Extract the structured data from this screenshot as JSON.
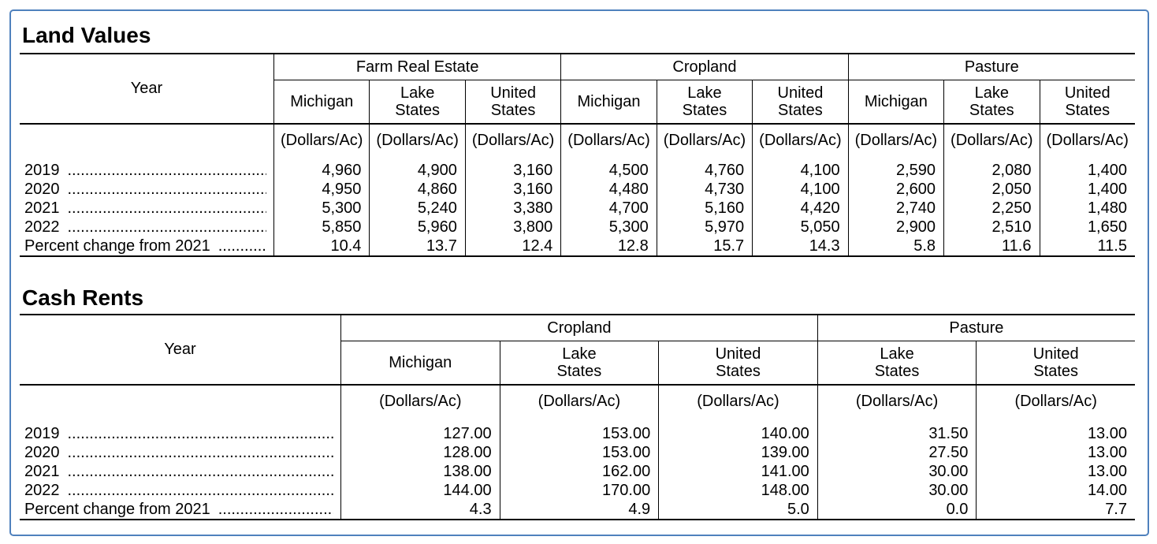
{
  "page": {
    "border_color": "#4f81bd"
  },
  "tables": [
    {
      "title": "Land Values",
      "year_header": "Year",
      "unit_label": "(Dollars/Ac)",
      "groups": [
        {
          "label": "Farm Real Estate",
          "columns": [
            "Michigan",
            "Lake\nStates",
            "United\nStates"
          ]
        },
        {
          "label": "Cropland",
          "columns": [
            "Michigan",
            "Lake\nStates",
            "United\nStates"
          ]
        },
        {
          "label": "Pasture",
          "columns": [
            "Michigan",
            "Lake\nStates",
            "United\nStates"
          ]
        }
      ],
      "rows": [
        {
          "label": "2019",
          "values": [
            "4,960",
            "4,900",
            "3,160",
            "4,500",
            "4,760",
            "4,100",
            "2,590",
            "2,080",
            "1,400"
          ]
        },
        {
          "label": "2020",
          "values": [
            "4,950",
            "4,860",
            "3,160",
            "4,480",
            "4,730",
            "4,100",
            "2,600",
            "2,050",
            "1,400"
          ]
        },
        {
          "label": "2021",
          "values": [
            "5,300",
            "5,240",
            "3,380",
            "4,700",
            "5,160",
            "4,420",
            "2,740",
            "2,250",
            "1,480"
          ]
        },
        {
          "label": "2022",
          "values": [
            "5,850",
            "5,960",
            "3,800",
            "5,300",
            "5,970",
            "5,050",
            "2,900",
            "2,510",
            "1,650"
          ]
        },
        {
          "label": "Percent change from 2021",
          "values": [
            "10.4",
            "13.7",
            "12.4",
            "12.8",
            "15.7",
            "14.3",
            "5.8",
            "11.6",
            "11.5"
          ]
        }
      ]
    },
    {
      "title": "Cash Rents",
      "year_header": "Year",
      "unit_label": "(Dollars/Ac)",
      "groups": [
        {
          "label": "Cropland",
          "columns": [
            "Michigan",
            "Lake\nStates",
            "United\nStates"
          ]
        },
        {
          "label": "Pasture",
          "columns": [
            "Lake\nStates",
            "United\nStates"
          ]
        }
      ],
      "rows": [
        {
          "label": "2019",
          "values": [
            "127.00",
            "153.00",
            "140.00",
            "31.50",
            "13.00"
          ]
        },
        {
          "label": "2020",
          "values": [
            "128.00",
            "153.00",
            "139.00",
            "27.50",
            "13.00"
          ]
        },
        {
          "label": "2021",
          "values": [
            "138.00",
            "162.00",
            "141.00",
            "30.00",
            "13.00"
          ]
        },
        {
          "label": "2022",
          "values": [
            "144.00",
            "170.00",
            "148.00",
            "30.00",
            "14.00"
          ]
        },
        {
          "label": "Percent change from 2021",
          "values": [
            "4.3",
            "4.9",
            "5.0",
            "0.0",
            "7.7"
          ]
        }
      ]
    }
  ]
}
